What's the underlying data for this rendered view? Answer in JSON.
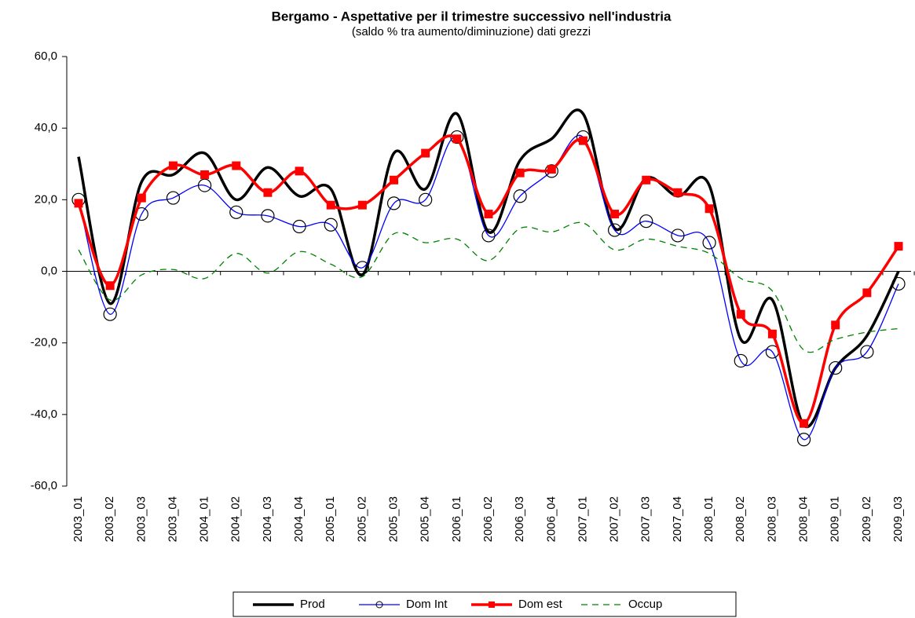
{
  "chart_data": {
    "type": "line",
    "title": "Bergamo - Aspettative per il trimestre successivo nell'industria",
    "subtitle": "(saldo % tra aumento/diminuzione) dati grezzi",
    "categories": [
      "2003_01",
      "2003_02",
      "2003_03",
      "2003_04",
      "2004_01",
      "2004_02",
      "2004_03",
      "2004_04",
      "2005_01",
      "2005_02",
      "2005_03",
      "2005_04",
      "2006_01",
      "2006_02",
      "2006_03",
      "2006_04",
      "2007_01",
      "2007_02",
      "2007_03",
      "2007_04",
      "2008_01",
      "2008_02",
      "2008_03",
      "2008_04",
      "2009_01",
      "2009_02",
      "2009_03"
    ],
    "series": [
      {
        "name": "Prod",
        "color": "#000000",
        "values": [
          32,
          -9,
          25,
          27,
          33,
          20,
          29,
          21,
          23,
          -1,
          33,
          23,
          44,
          11,
          31,
          37,
          44,
          12,
          26,
          21,
          24,
          -19,
          -8,
          -43,
          -27,
          -18,
          0
        ]
      },
      {
        "name": "Dom Int",
        "color": "#0000ff",
        "values": [
          20,
          -12,
          16,
          20.5,
          24,
          16.5,
          15.5,
          12.5,
          13,
          1,
          19,
          20,
          37.5,
          10,
          21,
          28,
          37.5,
          11.5,
          14,
          10,
          8,
          -25,
          -22.5,
          -47,
          -27,
          -22.5,
          -3.5
        ]
      },
      {
        "name": "Dom est",
        "color": "#ff0000",
        "values": [
          19,
          -4,
          20.5,
          29.5,
          27,
          29.5,
          22,
          28,
          18.5,
          18.5,
          25.5,
          33,
          37,
          16,
          27.5,
          28.5,
          36.5,
          16,
          25.5,
          22,
          17.5,
          -12,
          -17.5,
          -42.5,
          -15,
          -6,
          7
        ]
      },
      {
        "name": "Occup",
        "color": "#008000",
        "values": [
          6,
          -8,
          -1,
          0.5,
          -2,
          5,
          -0.5,
          5.5,
          2,
          -1.5,
          10.5,
          8,
          9,
          3,
          12,
          11,
          13.5,
          6,
          9,
          7,
          5,
          -2,
          -5.5,
          -22,
          -19,
          -17,
          -16
        ]
      }
    ],
    "ylim": [
      -60,
      60
    ],
    "yticks": [
      {
        "value": -60,
        "label": "-60,0"
      },
      {
        "value": -40,
        "label": "-40,0"
      },
      {
        "value": -20,
        "label": "-20,0"
      },
      {
        "value": 0,
        "label": "0,0"
      },
      {
        "value": 20,
        "label": "20,0"
      },
      {
        "value": 40,
        "label": "40,0"
      },
      {
        "value": 60,
        "label": "60,0"
      }
    ],
    "legend": "bottom"
  }
}
